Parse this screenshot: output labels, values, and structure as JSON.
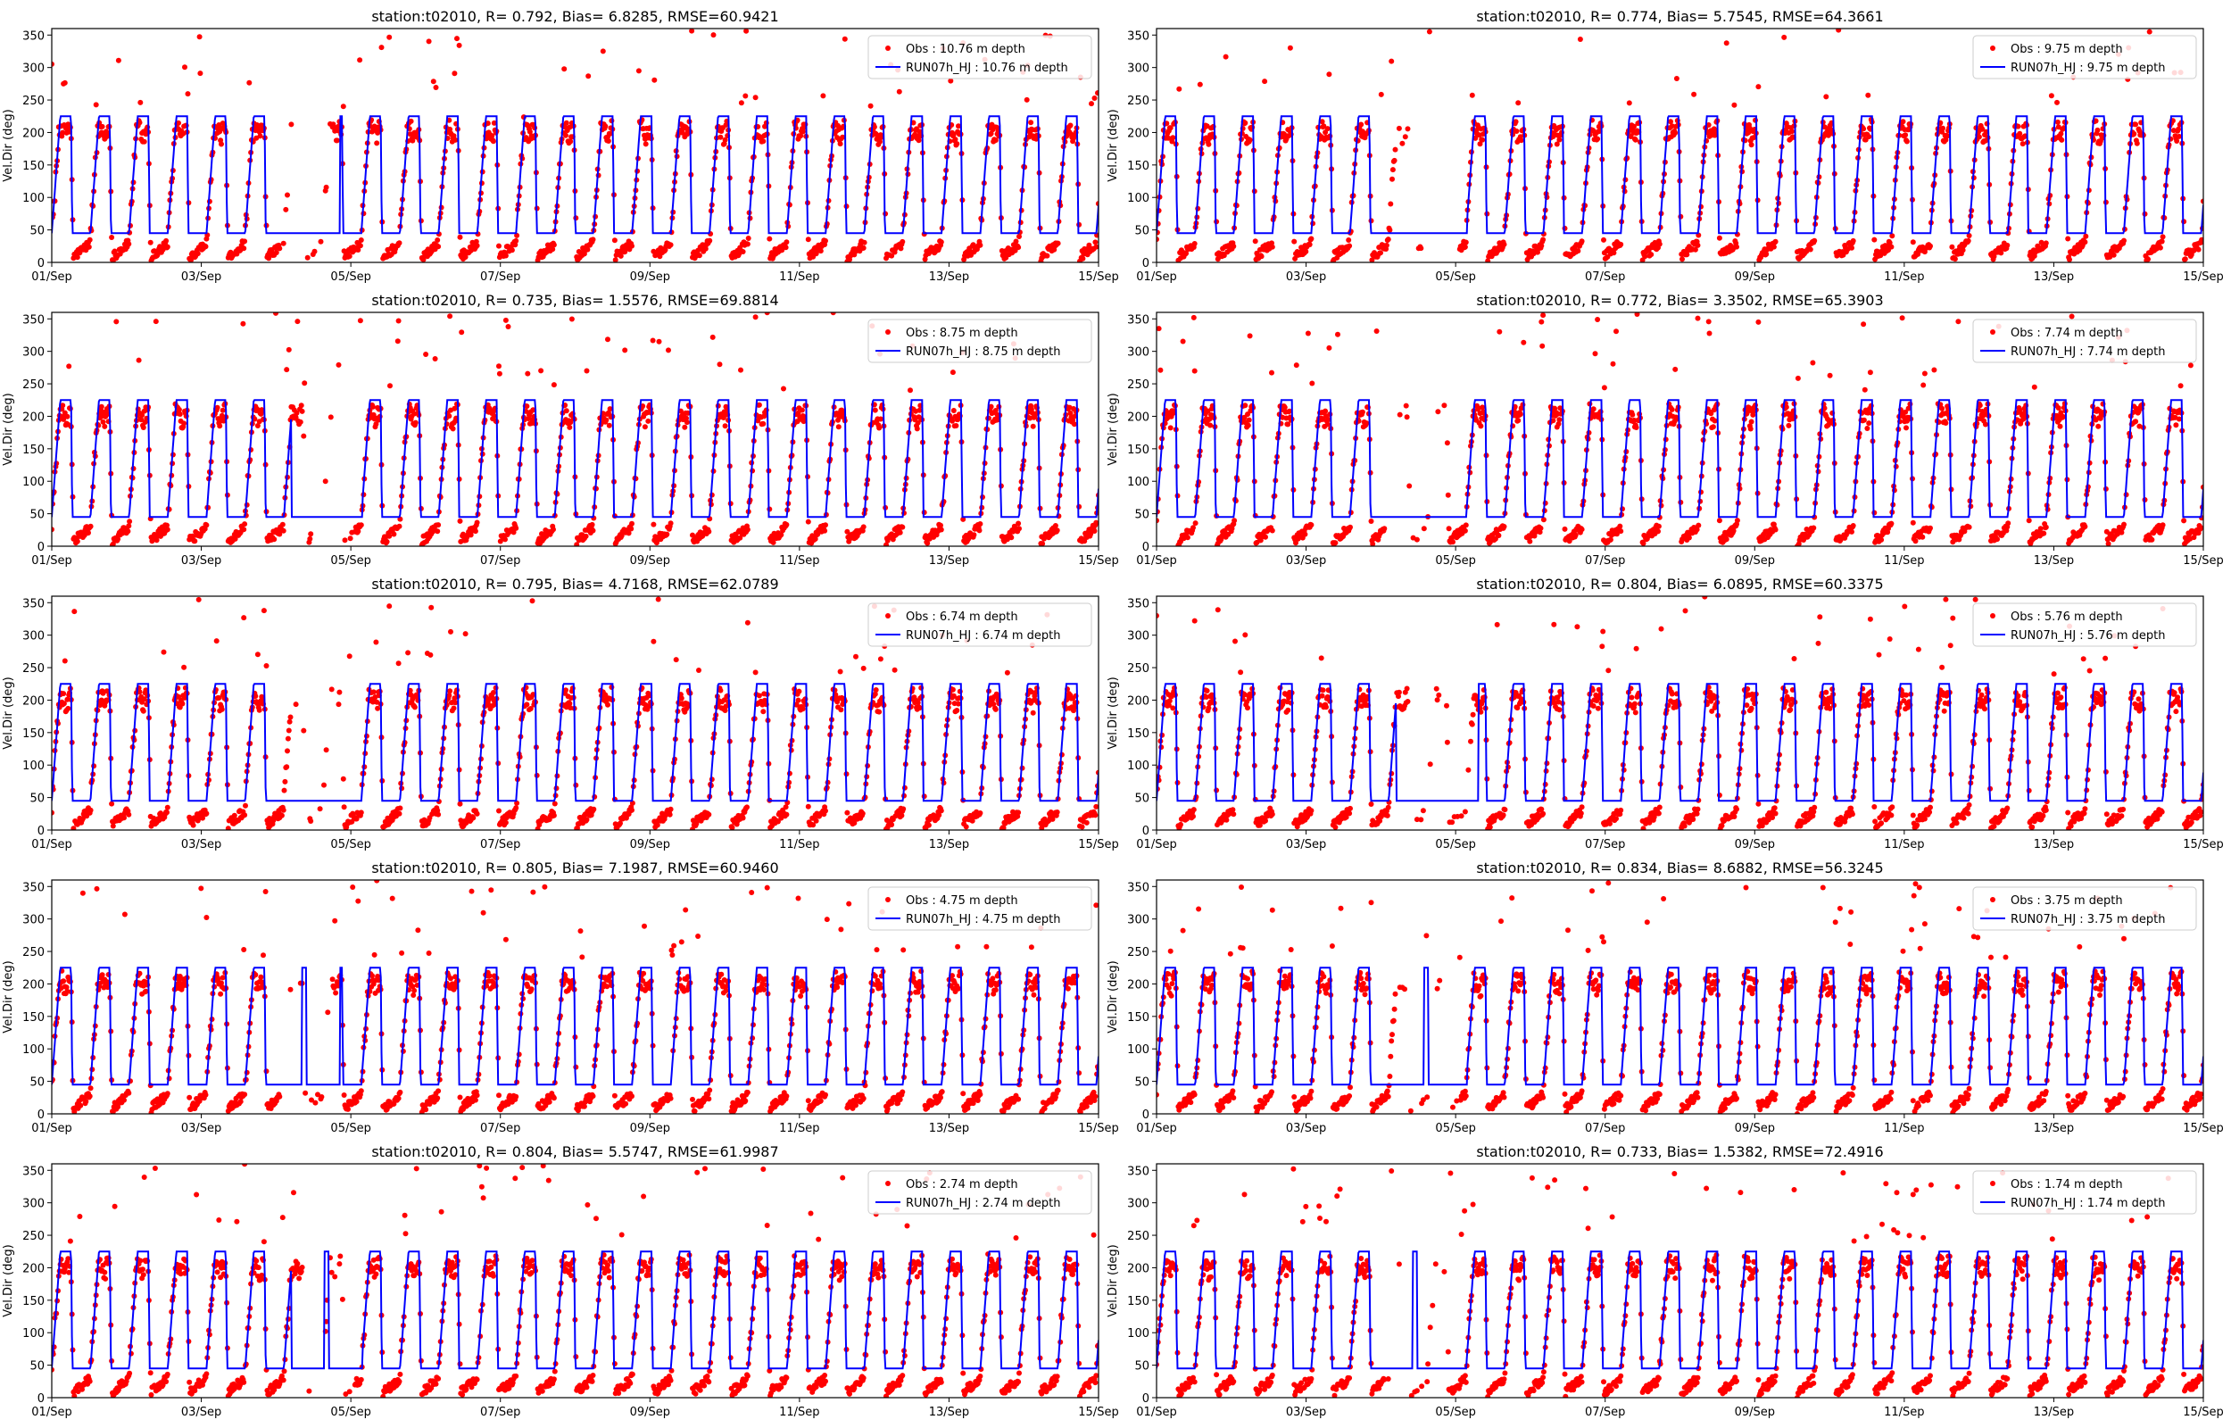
{
  "chart_data": {
    "type": "scatter",
    "layout": "5 rows x 2 columns",
    "x_start": "2023-09-01",
    "x_end": "2023-09-15",
    "xticks": [
      "01/Sep",
      "03/Sep",
      "05/Sep",
      "07/Sep",
      "09/Sep",
      "11/Sep",
      "13/Sep",
      "15/Sep"
    ],
    "ylabel": "Vel.Dir (deg)",
    "ylim": [
      0,
      360
    ],
    "yticks": [
      "0",
      "50",
      "100",
      "150",
      "200",
      "250",
      "300",
      "350"
    ],
    "grid": false,
    "legend_position": "top-right",
    "model_levels": {
      "low": 45,
      "high": 225
    },
    "obs_color": "#ff0000",
    "model_color": "#0000ff",
    "panels": [
      {
        "title": "station:t02010, R= 0.792, Bias= 6.8285, RMSE=60.9421",
        "obs_label": "Obs : 10.76 m depth",
        "model_label": "RUN07h_HJ : 10.76 m depth"
      },
      {
        "title": "station:t02010, R= 0.774, Bias= 5.7545, RMSE=64.3661",
        "obs_label": "Obs : 9.75 m depth",
        "model_label": "RUN07h_HJ : 9.75 m depth"
      },
      {
        "title": "station:t02010, R= 0.735, Bias= 1.5576, RMSE=69.8814",
        "obs_label": "Obs : 8.75 m depth",
        "model_label": "RUN07h_HJ : 8.75 m depth"
      },
      {
        "title": "station:t02010, R= 0.772, Bias= 3.3502, RMSE=65.3903",
        "obs_label": "Obs : 7.74 m depth",
        "model_label": "RUN07h_HJ : 7.74 m depth"
      },
      {
        "title": "station:t02010, R= 0.795, Bias= 4.7168, RMSE=62.0789",
        "obs_label": "Obs : 6.74 m depth",
        "model_label": "RUN07h_HJ : 6.74 m depth"
      },
      {
        "title": "station:t02010, R= 0.804, Bias= 6.0895, RMSE=60.3375",
        "obs_label": "Obs : 5.76 m depth",
        "model_label": "RUN07h_HJ : 5.76 m depth"
      },
      {
        "title": "station:t02010, R= 0.805, Bias= 7.1987, RMSE=60.9460",
        "obs_label": "Obs : 4.75 m depth",
        "model_label": "RUN07h_HJ : 4.75 m depth"
      },
      {
        "title": "station:t02010, R= 0.834, Bias= 8.6882, RMSE=56.3245",
        "obs_label": "Obs : 3.75 m depth",
        "model_label": "RUN07h_HJ : 3.75 m depth"
      },
      {
        "title": "station:t02010, R= 0.804, Bias= 5.5747, RMSE=61.9987",
        "obs_label": "Obs : 2.74 m depth",
        "model_label": "RUN07h_HJ : 2.74 m depth"
      },
      {
        "title": "station:t02010, R= 0.733, Bias= 1.5382, RMSE=72.4916",
        "obs_label": "Obs : 1.74 m depth",
        "model_label": "RUN07h_HJ : 1.74 m depth"
      }
    ]
  }
}
